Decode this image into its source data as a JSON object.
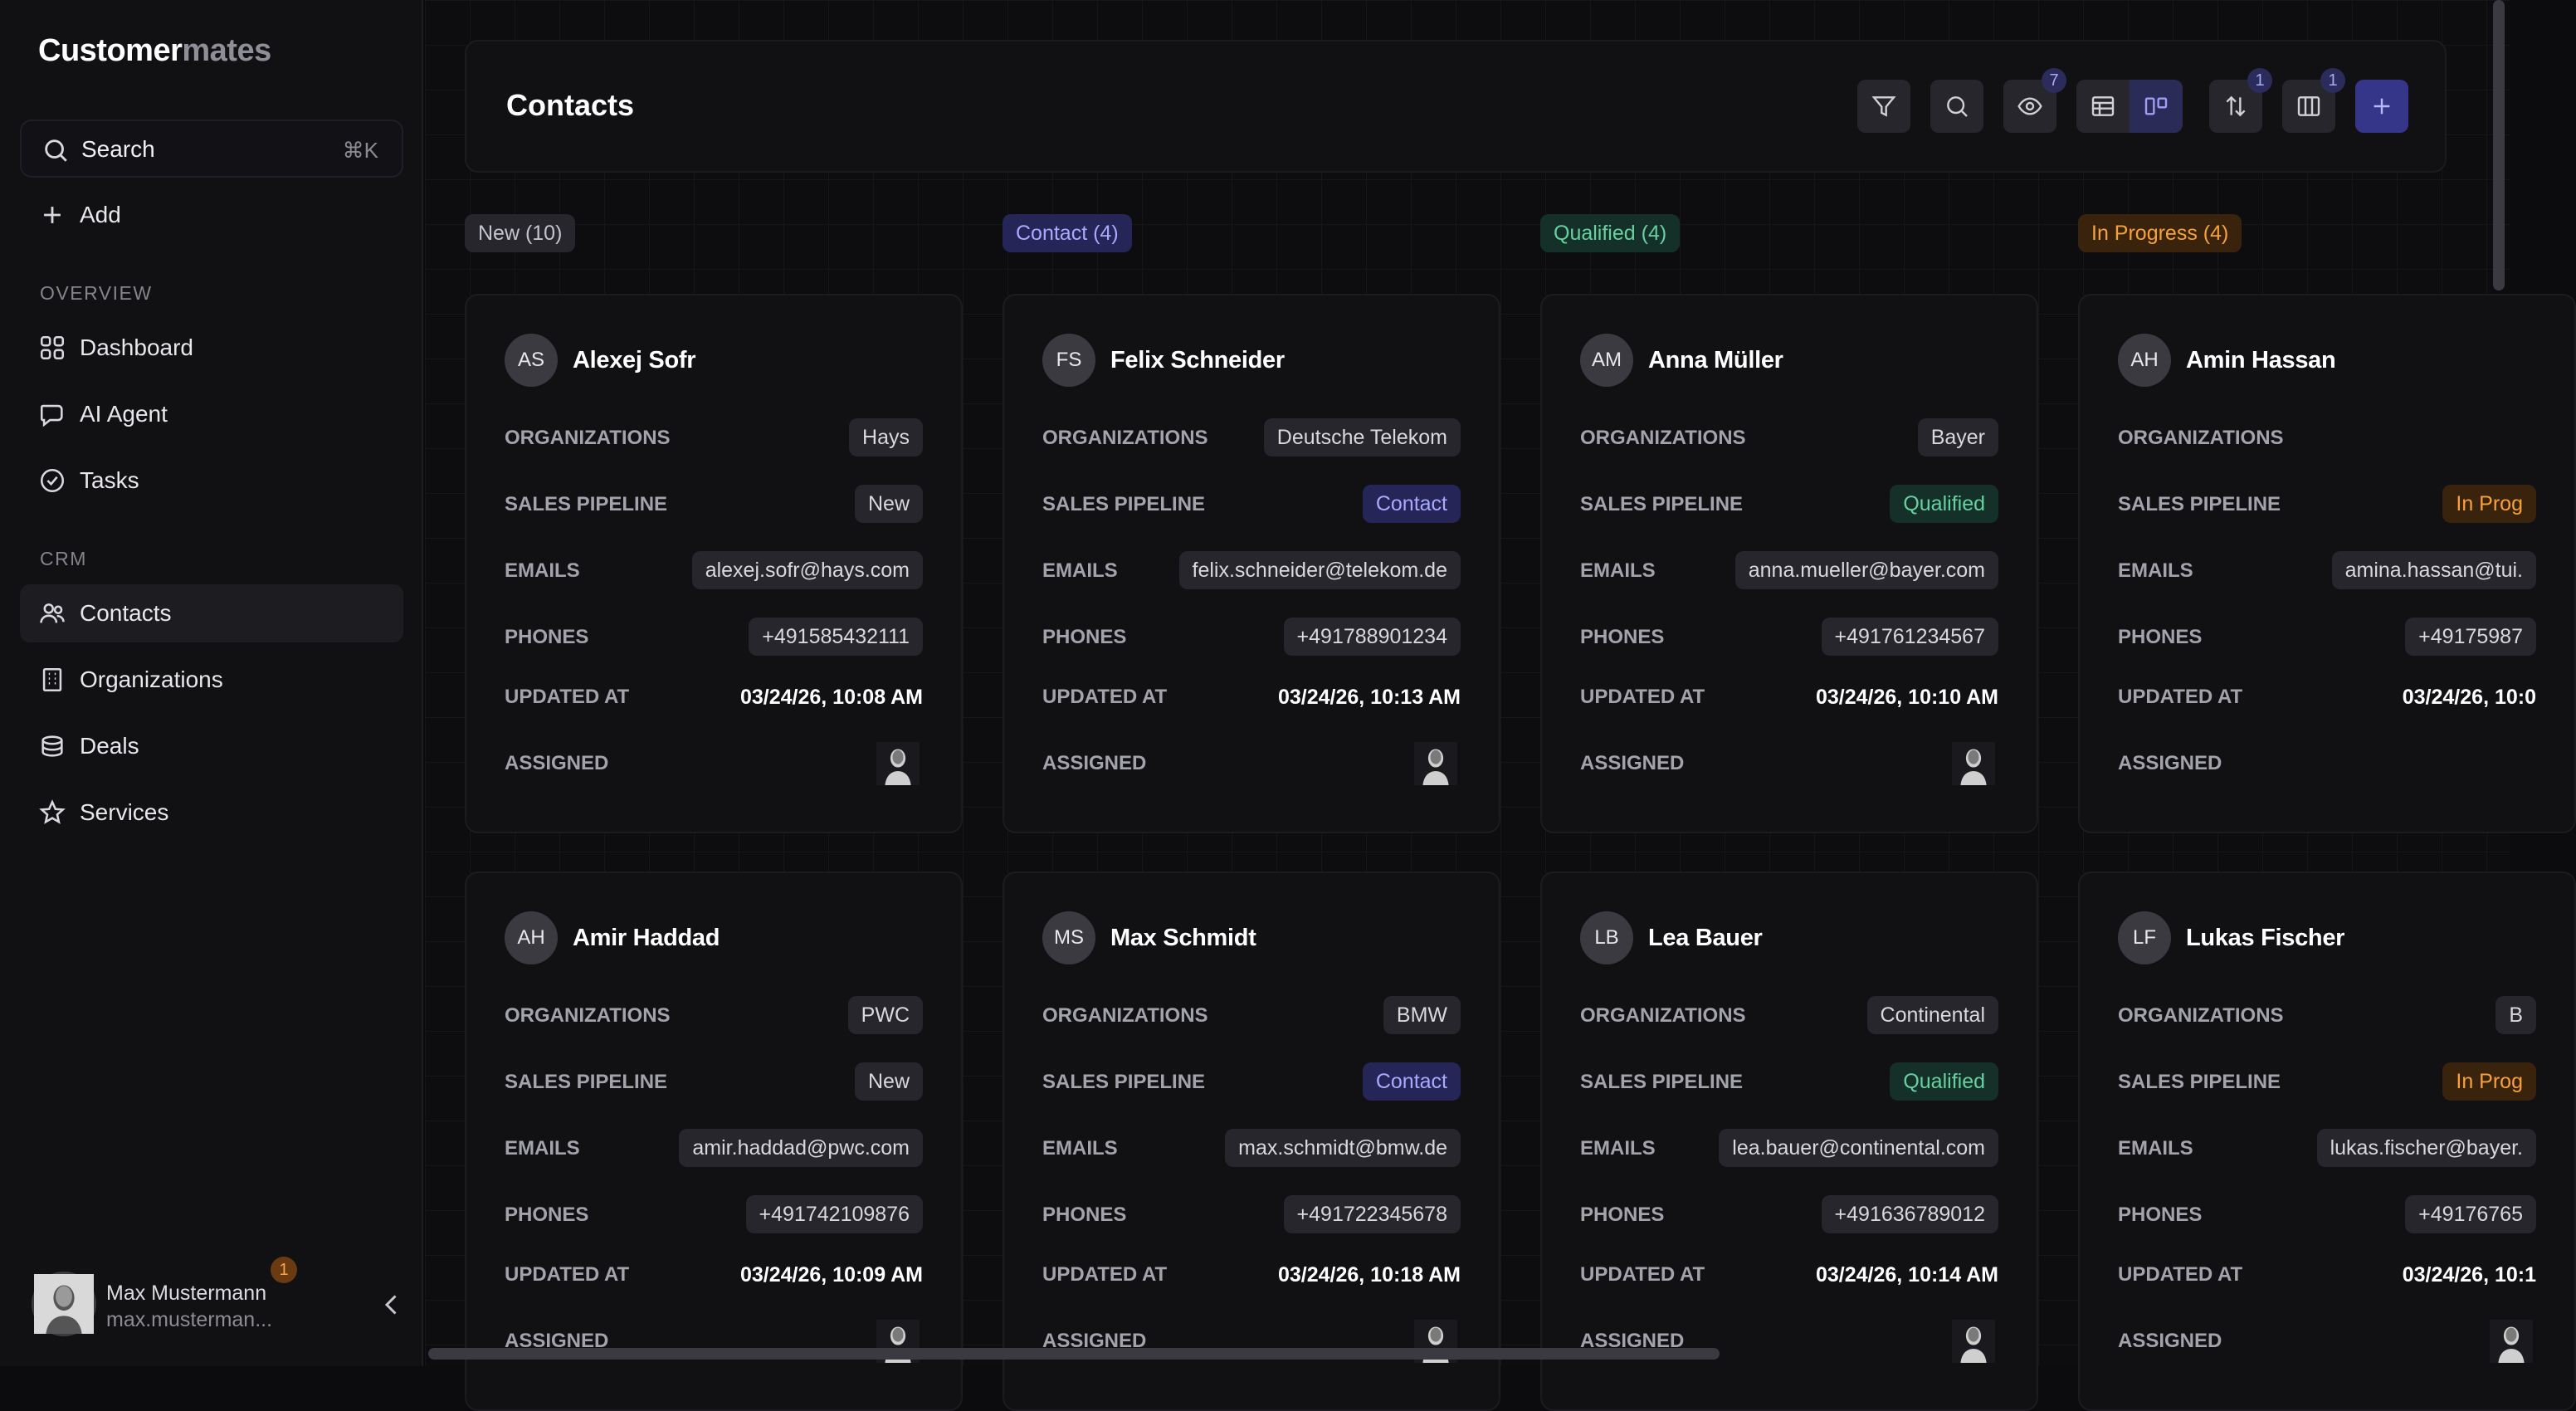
{
  "app": {
    "logo_primary": "Customer",
    "logo_secondary": "mates"
  },
  "sidebar": {
    "search_label": "Search",
    "search_shortcut": "⌘K",
    "add_label": "Add",
    "section_overview": "OVERVIEW",
    "section_crm": "CRM",
    "items": [
      {
        "label": "Dashboard",
        "icon": "grid-icon"
      },
      {
        "label": "AI Agent",
        "icon": "chat-icon"
      },
      {
        "label": "Tasks",
        "icon": "check-circle-icon"
      },
      {
        "label": "Contacts",
        "icon": "users-icon",
        "active": true
      },
      {
        "label": "Organizations",
        "icon": "building-icon"
      },
      {
        "label": "Deals",
        "icon": "coins-icon"
      },
      {
        "label": "Services",
        "icon": "star-icon"
      }
    ],
    "user": {
      "name": "Max Mustermann",
      "email": "max.musterman...",
      "notifications": "1"
    }
  },
  "header": {
    "title": "Contacts",
    "visible_count": "7",
    "sort_count": "1",
    "columns_count": "1"
  },
  "columns": [
    {
      "label": "New (10)",
      "color": "#26262c",
      "text": "#c4c4cc"
    },
    {
      "label": "Contact (4)",
      "color": "#252557",
      "text": "#a9a9ff"
    },
    {
      "label": "Qualified (4)",
      "color": "#153028",
      "text": "#66d1a0"
    },
    {
      "label": "In Progress (4)",
      "color": "#3a230c",
      "text": "#f6a13d"
    }
  ],
  "field_labels": {
    "organizations": "ORGANIZATIONS",
    "sales_pipeline": "SALES PIPELINE",
    "emails": "EMAILS",
    "phones": "PHONES",
    "updated_at": "UPDATED AT",
    "assigned": "ASSIGNED"
  },
  "cards": [
    {
      "initials": "AS",
      "name": "Alexej Sofr",
      "org": "Hays",
      "pipeline": "New",
      "email": "alexej.sofr@hays.com",
      "phone": "+491585432111",
      "updated": "03/24/26, 10:08 AM"
    },
    {
      "initials": "FS",
      "name": "Felix Schneider",
      "org": "Deutsche Telekom",
      "pipeline": "Contact",
      "email": "felix.schneider@telekom.de",
      "phone": "+491788901234",
      "updated": "03/24/26, 10:13 AM"
    },
    {
      "initials": "AM",
      "name": "Anna Müller",
      "org": "Bayer",
      "pipeline": "Qualified",
      "email": "anna.mueller@bayer.com",
      "phone": "+491761234567",
      "updated": "03/24/26, 10:10 AM"
    },
    {
      "initials": "AH",
      "name": "Amin Hassan",
      "org": "",
      "pipeline": "In Prog",
      "email": "amina.hassan@tui.",
      "phone": "+49175987",
      "updated": "03/24/26, 10:0"
    },
    {
      "initials": "AH",
      "name": "Amir Haddad",
      "org": "PWC",
      "pipeline": "New",
      "email": "amir.haddad@pwc.com",
      "phone": "+491742109876",
      "updated": "03/24/26, 10:09 AM"
    },
    {
      "initials": "MS",
      "name": "Max Schmidt",
      "org": "BMW",
      "pipeline": "Contact",
      "email": "max.schmidt@bmw.de",
      "phone": "+491722345678",
      "updated": "03/24/26, 10:18 AM"
    },
    {
      "initials": "LB",
      "name": "Lea Bauer",
      "org": "Continental",
      "pipeline": "Qualified",
      "email": "lea.bauer@continental.com",
      "phone": "+491636789012",
      "updated": "03/24/26, 10:14 AM"
    },
    {
      "initials": "LF",
      "name": "Lukas Fischer",
      "org": "B",
      "pipeline": "In Prog",
      "email": "lukas.fischer@bayer.",
      "phone": "+49176765",
      "updated": "03/24/26, 10:1"
    }
  ]
}
